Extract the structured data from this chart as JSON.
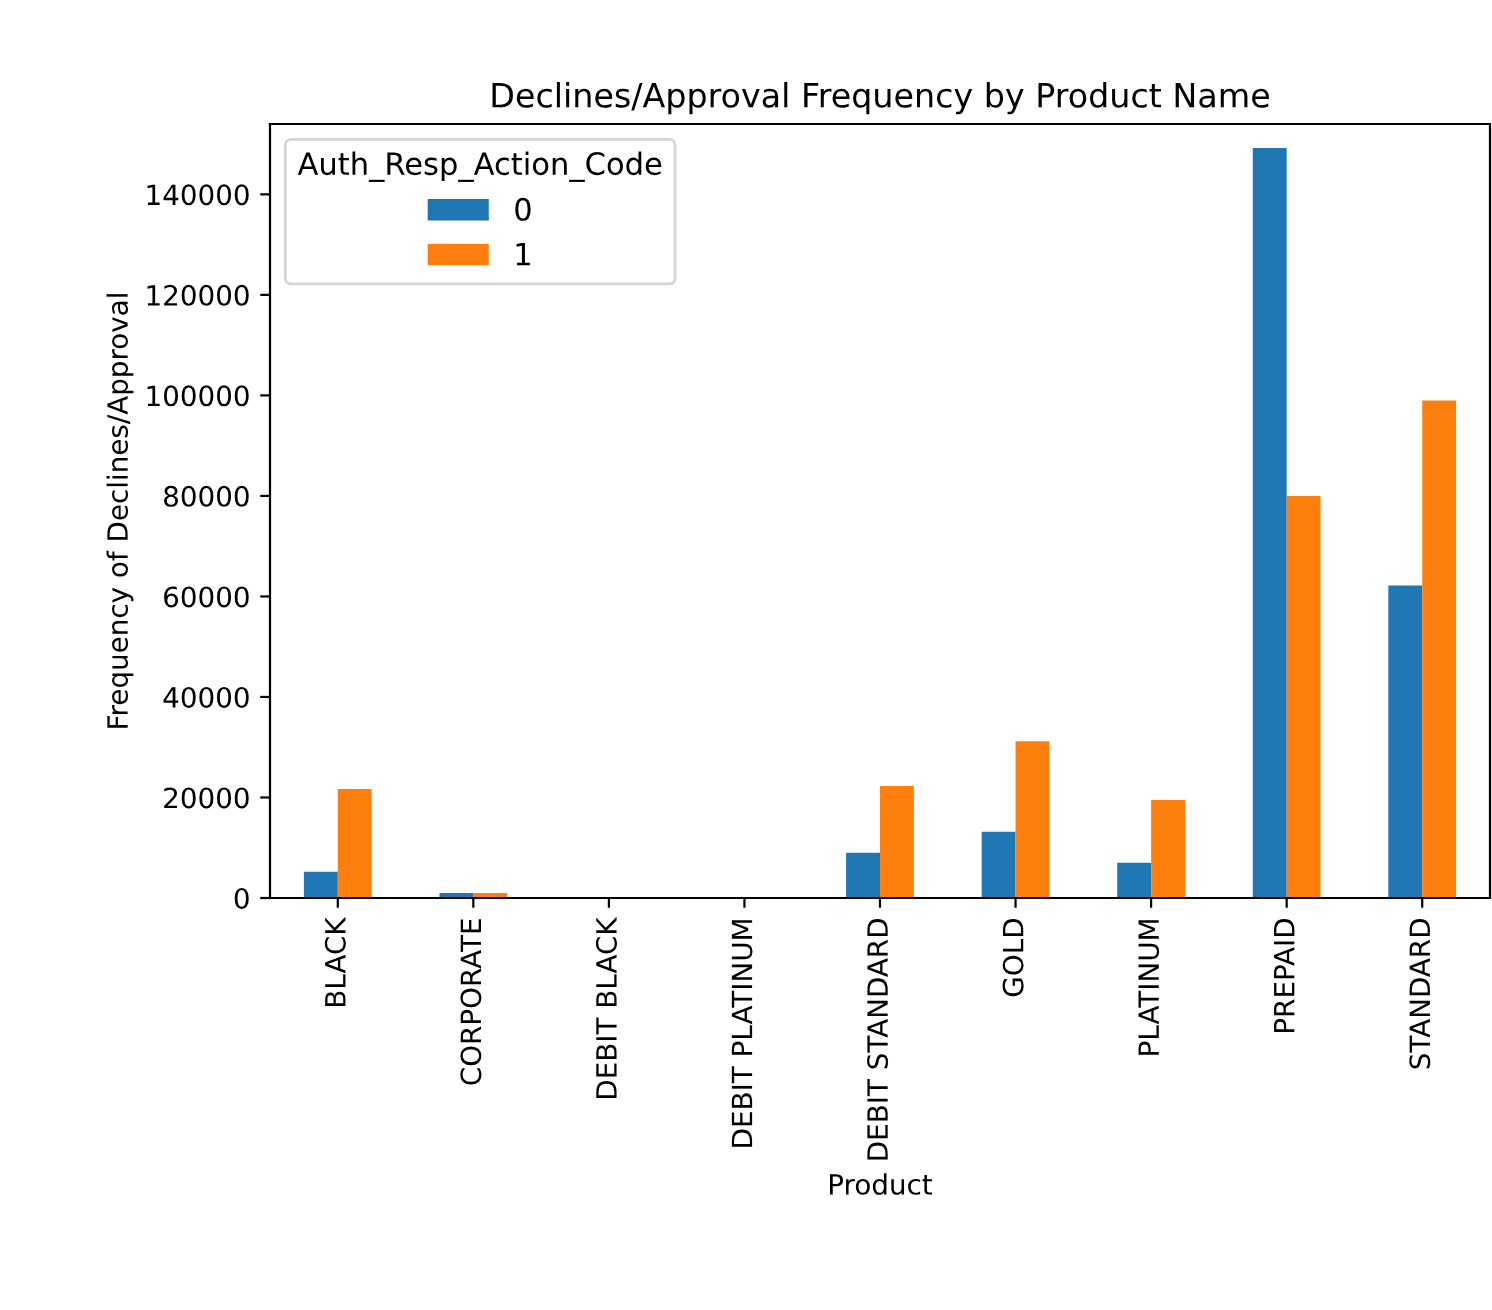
{
  "chart_data": {
    "type": "bar",
    "title": "Declines/Approval Frequency by Product Name",
    "xlabel": "Product",
    "ylabel": "Frequency of Declines/Approval",
    "legend_title": "Auth_Resp_Action_Code",
    "legend": "top left",
    "grid": false,
    "categories": [
      "BLACK",
      "CORPORATE",
      "DEBIT BLACK",
      "DEBIT PLATINUM",
      "DEBIT STANDARD",
      "GOLD",
      "PLATINUM",
      "PREPAID",
      "STANDARD"
    ],
    "series": [
      {
        "name": "0",
        "color": "#1f77b4",
        "values": [
          5200,
          1000,
          0,
          0,
          9000,
          13200,
          7000,
          149200,
          62200
        ]
      },
      {
        "name": "1",
        "color": "#ff7f0e",
        "values": [
          21700,
          1000,
          0,
          0,
          22300,
          31200,
          19500,
          80000,
          99000
        ]
      }
    ],
    "ylim": [
      0,
      154000
    ],
    "yticks": [
      0,
      20000,
      40000,
      60000,
      80000,
      100000,
      120000,
      140000
    ]
  }
}
